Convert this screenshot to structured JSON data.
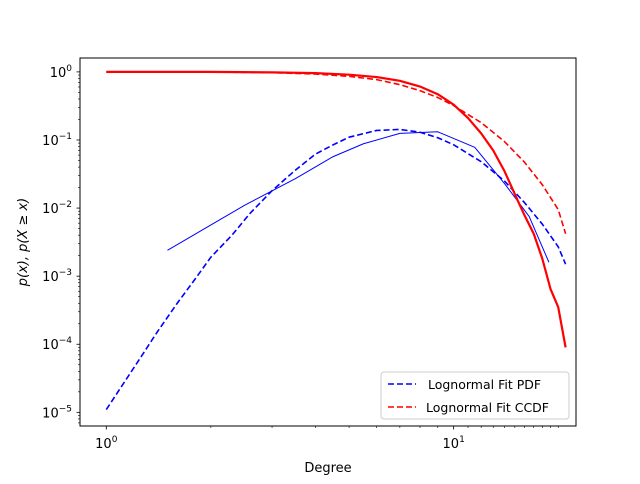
{
  "chart_data": {
    "type": "line",
    "title": "",
    "xlabel": "Degree",
    "ylabel": "p(x), p(X ≥ x)",
    "x_scale": "log",
    "y_scale": "log",
    "xlim": [
      0.84,
      22.5
    ],
    "ylim": [
      6.3e-06,
      1.6
    ],
    "x_ticks": [
      {
        "value": 1,
        "label_base": "10",
        "label_exp": "0"
      },
      {
        "value": 10,
        "label_base": "10",
        "label_exp": "1"
      }
    ],
    "y_ticks": [
      {
        "value": 1e-05,
        "label_base": "10",
        "label_exp": "−5"
      },
      {
        "value": 0.0001,
        "label_base": "10",
        "label_exp": "−4"
      },
      {
        "value": 0.001,
        "label_base": "10",
        "label_exp": "−3"
      },
      {
        "value": 0.01,
        "label_base": "10",
        "label_exp": "−2"
      },
      {
        "value": 0.1,
        "label_base": "10",
        "label_exp": "−1"
      },
      {
        "value": 1,
        "label_base": "10",
        "label_exp": "0"
      }
    ],
    "legend_position": "lower-right",
    "series": [
      {
        "name": "",
        "color": "#0000ff",
        "style": "solid-thin",
        "x": [
          1.5,
          2.5,
          3.5,
          4.5,
          5.5,
          7,
          9,
          11.5,
          14,
          16.5,
          18.8
        ],
        "y": [
          0.0024,
          0.011,
          0.027,
          0.057,
          0.088,
          0.125,
          0.132,
          0.078,
          0.023,
          0.0075,
          0.0016
        ]
      },
      {
        "name": " Lognormal Fit PDF",
        "color": "#0000ff",
        "style": "dashed",
        "x": [
          1,
          1.2,
          1.4,
          1.6,
          1.8,
          2,
          2.3,
          2.6,
          3,
          3.5,
          4,
          4.5,
          5,
          6,
          7,
          8,
          9,
          10,
          12,
          14,
          16,
          18,
          20,
          21
        ],
        "y": [
          1.1e-05,
          4.5e-05,
          0.00015,
          0.0004,
          0.0009,
          0.0019,
          0.004,
          0.0085,
          0.018,
          0.036,
          0.062,
          0.085,
          0.11,
          0.138,
          0.143,
          0.13,
          0.108,
          0.085,
          0.048,
          0.025,
          0.012,
          0.0058,
          0.0027,
          0.0015
        ]
      },
      {
        "name": "Lognormal Fit CCDF",
        "color": "#ff0000",
        "style": "dashed",
        "x": [
          1,
          2,
          3,
          4,
          5,
          6,
          7,
          8,
          9,
          10,
          12,
          14,
          16,
          18,
          20,
          21
        ],
        "y": [
          1.0,
          0.997,
          0.975,
          0.93,
          0.86,
          0.77,
          0.65,
          0.53,
          0.42,
          0.32,
          0.18,
          0.095,
          0.047,
          0.022,
          0.0095,
          0.0042
        ]
      },
      {
        "name": "",
        "color": "#ff0000",
        "style": "solid-thick",
        "x": [
          1,
          2,
          3,
          4,
          5,
          6,
          7,
          8,
          9,
          10,
          11,
          12,
          13,
          14,
          15,
          16,
          17,
          18,
          19,
          20,
          21
        ],
        "y": [
          1.0,
          1.0,
          0.985,
          0.96,
          0.91,
          0.84,
          0.74,
          0.61,
          0.47,
          0.33,
          0.21,
          0.125,
          0.07,
          0.035,
          0.016,
          0.0078,
          0.0042,
          0.0018,
          0.00065,
          0.00035,
          9e-05
        ]
      }
    ]
  }
}
